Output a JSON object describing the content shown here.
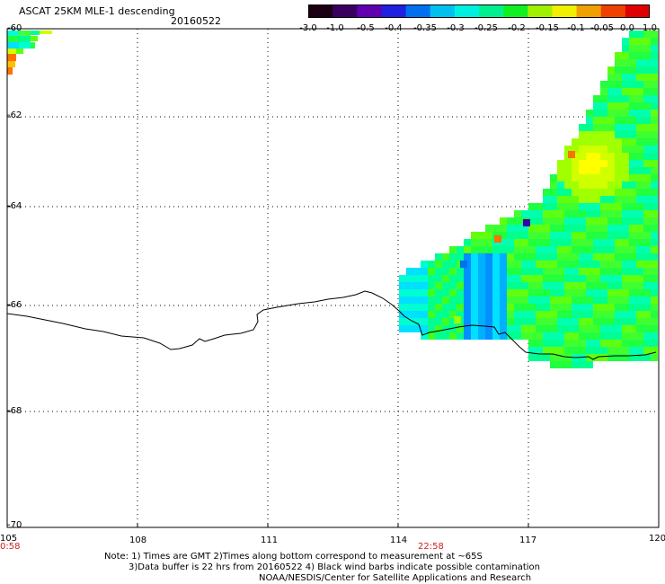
{
  "title": "ASCAT 25KM MLE-1 descending",
  "date": "20160522",
  "colorbar": {
    "labels": [
      "-3.0",
      "-1.0",
      "-0.5",
      "-0.4",
      "-0.35",
      "-0.3",
      "-0.25",
      "-0.2",
      "-0.15",
      "-0.1",
      "-0.05",
      "0.0",
      "1.0"
    ],
    "colors": [
      "#1a0012",
      "#3a0060",
      "#6000b0",
      "#2020e0",
      "#0070f0",
      "#00c0f0",
      "#00f0e0",
      "#00f090",
      "#10f020",
      "#a0f000",
      "#f0f000",
      "#f0a000",
      "#f04000",
      "#e00000"
    ]
  },
  "map": {
    "lat_labels": [
      "-60",
      "-62",
      "-64",
      "-66",
      "-68",
      "-70"
    ],
    "lon_labels": [
      "105",
      "108",
      "111",
      "114",
      "117",
      "120"
    ],
    "time_labels": {
      "left": "0:58",
      "middle": "22:58"
    }
  },
  "notes": {
    "line1": "Note: 1) Times are GMT 2)Times along bottom correspond to measurement at ~65S",
    "line2": "3)Data buffer is 22 hrs from 20160522 4) Black wind barbs indicate possible contamination",
    "line3": "NOAA/NESDIS/Center for Satellite Applications and Research"
  }
}
